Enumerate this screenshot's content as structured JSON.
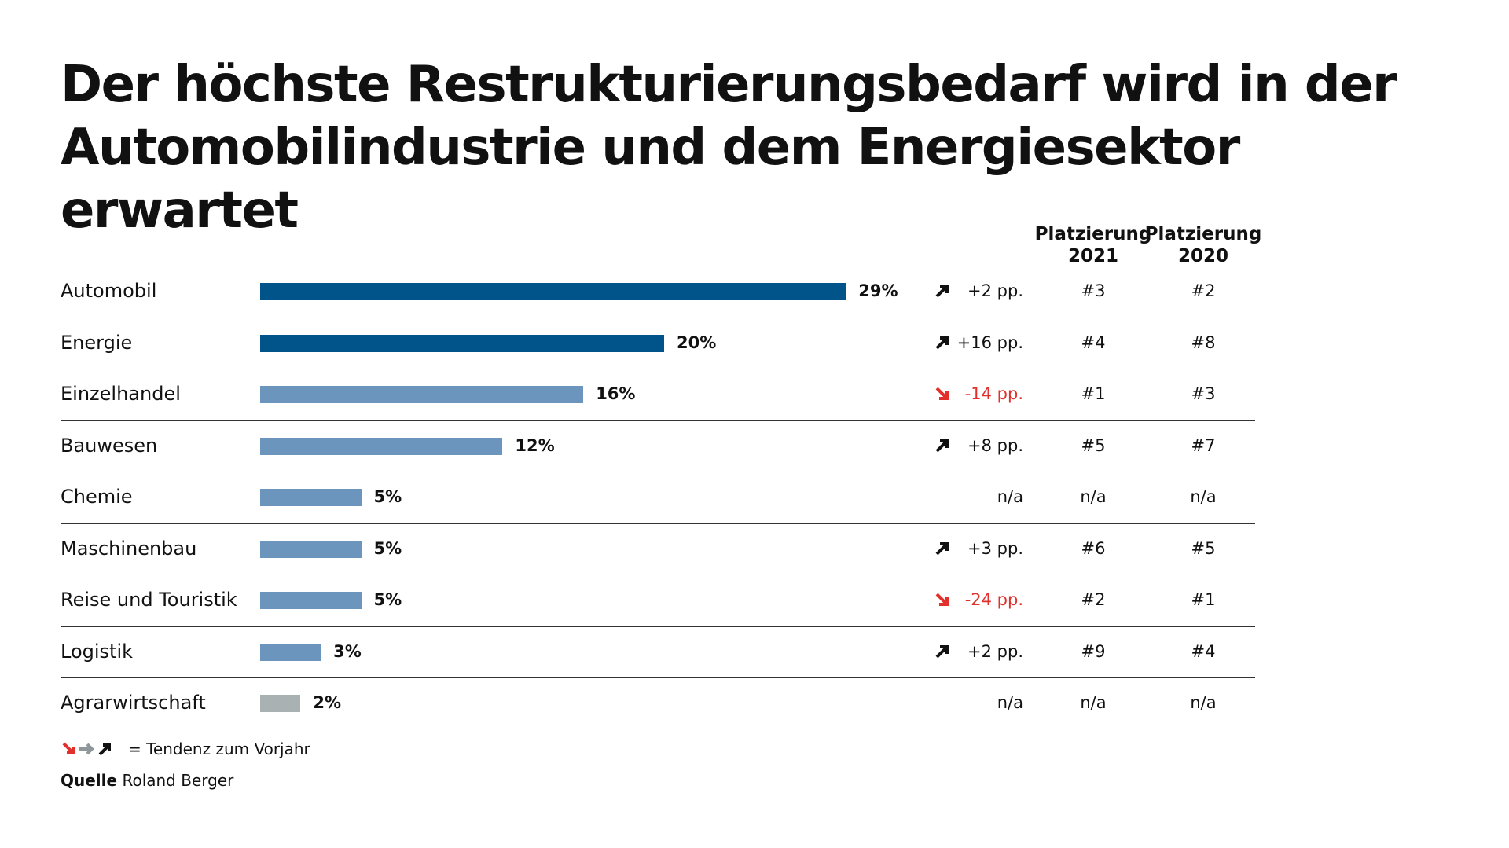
{
  "chart_data": {
    "type": "bar",
    "title": "Der höchste Restrukturierungsbedarf wird in der Automobilindustrie und dem Energiesektor erwartet",
    "columns": [
      "Platzierung 2021",
      "Platzierung 2020"
    ],
    "rows": [
      {
        "category": "Automobil",
        "value": 29,
        "label": "29%",
        "color": "#00548a",
        "trend": "up",
        "change": "+2 pp.",
        "rank2021": "#3",
        "rank2020": "#2"
      },
      {
        "category": "Energie",
        "value": 20,
        "label": "20%",
        "color": "#00548a",
        "trend": "up",
        "change": "+16 pp.",
        "rank2021": "#4",
        "rank2020": "#8"
      },
      {
        "category": "Einzelhandel",
        "value": 16,
        "label": "16%",
        "color": "#6b95bd",
        "trend": "down",
        "change": "-14 pp.",
        "rank2021": "#1",
        "rank2020": "#3"
      },
      {
        "category": "Bauwesen",
        "value": 12,
        "label": "12%",
        "color": "#6b95bd",
        "trend": "up",
        "change": "+8 pp.",
        "rank2021": "#5",
        "rank2020": "#7"
      },
      {
        "category": "Chemie",
        "value": 5,
        "label": "5%",
        "color": "#6b95bd",
        "trend": "",
        "change": "n/a",
        "rank2021": "n/a",
        "rank2020": "n/a"
      },
      {
        "category": "Maschinenbau",
        "value": 5,
        "label": "5%",
        "color": "#6b95bd",
        "trend": "up",
        "change": "+3 pp.",
        "rank2021": "#6",
        "rank2020": "#5"
      },
      {
        "category": "Reise und Touristik",
        "value": 5,
        "label": "5%",
        "color": "#6b95bd",
        "trend": "down",
        "change": "-24 pp.",
        "rank2021": "#2",
        "rank2020": "#1"
      },
      {
        "category": "Logistik",
        "value": 3,
        "label": "3%",
        "color": "#6b95bd",
        "trend": "up",
        "change": "+2 pp.",
        "rank2021": "#9",
        "rank2020": "#4"
      },
      {
        "category": "Agrarwirtschaft",
        "value": 2,
        "label": "2%",
        "color": "#a9b1b3",
        "trend": "",
        "change": "n/a",
        "rank2021": "n/a",
        "rank2020": "n/a"
      }
    ],
    "trend_colors": {
      "up": "#111111",
      "down": "#e2312c",
      "flat": "#8f979a"
    }
  },
  "legend": {
    "text": "= Tendenz zum Vorjahr"
  },
  "source": {
    "label": "Quelle",
    "value": "Roland Berger"
  }
}
